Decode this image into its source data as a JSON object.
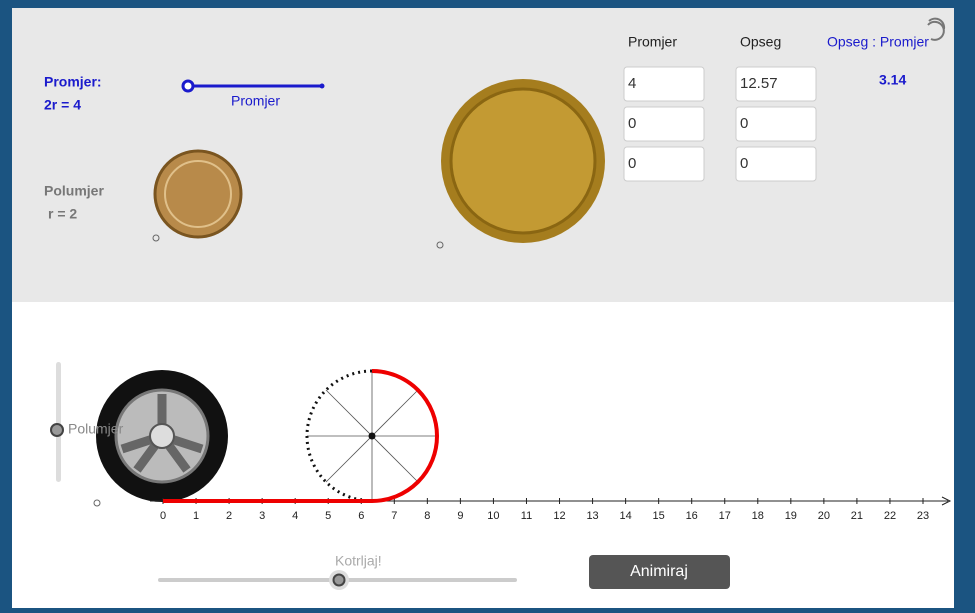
{
  "top_panel": {
    "promjer_label": "Promjer:",
    "promjer_value": "2r = 4",
    "slider_label": "Promjer",
    "polumjer_label": "Polumjer",
    "polumjer_value": "r = 2"
  },
  "table": {
    "headers": [
      "Promjer",
      "Opseg",
      "Opseg : Promjer"
    ],
    "rows": [
      [
        "4",
        "12.57"
      ],
      [
        "0",
        "0"
      ],
      [
        "0",
        "0"
      ]
    ],
    "ratio": "3.14"
  },
  "number_line": {
    "ticks": [
      "0",
      "1",
      "2",
      "3",
      "4",
      "5",
      "6",
      "7",
      "8",
      "9",
      "10",
      "11",
      "12",
      "13",
      "14",
      "15",
      "16",
      "17",
      "18",
      "19",
      "20",
      "21",
      "22",
      "23"
    ]
  },
  "vertical_slider_label": "Polumjer",
  "roll_slider_label": "Kotrljaj!",
  "button": "Animiraj"
}
